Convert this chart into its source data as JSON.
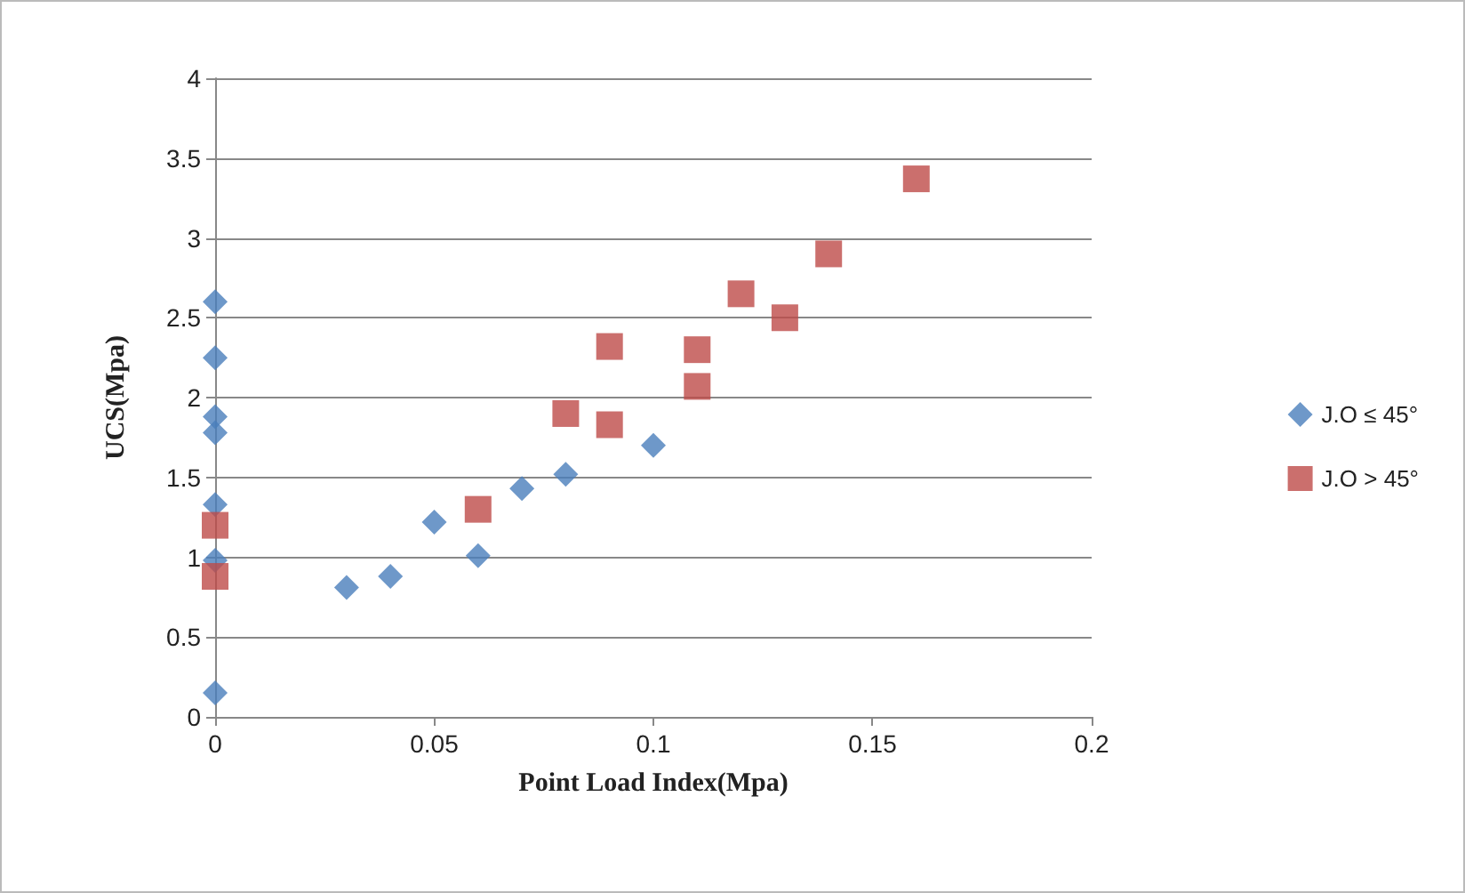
{
  "chart_data": {
    "type": "scatter",
    "xlabel": "Point Load Index(Mpa)",
    "ylabel": "UCS(Mpa)",
    "xlim": [
      0,
      0.2
    ],
    "xticks": [
      0,
      0.05,
      0.1,
      0.15,
      0.2
    ],
    "ylim": [
      0,
      4
    ],
    "yticks": [
      0,
      0.5,
      1,
      1.5,
      2,
      2.5,
      3,
      3.5,
      4
    ],
    "grid": "y",
    "legend": "right",
    "series": [
      {
        "name": "J.O ≤ 45°",
        "color": "#4a7ebb",
        "marker": "diamond",
        "x": [
          0,
          0,
          0,
          0,
          0,
          0,
          0,
          0.03,
          0.04,
          0.05,
          0.06,
          0.07,
          0.08,
          0.1
        ],
        "values": [
          2.6,
          2.25,
          1.88,
          1.78,
          1.33,
          0.98,
          0.15,
          0.81,
          0.88,
          1.22,
          1.01,
          1.43,
          1.52,
          1.7
        ]
      },
      {
        "name": "J.O > 45°",
        "color": "#be4b48",
        "marker": "square",
        "x": [
          0,
          0,
          0.06,
          0.08,
          0.09,
          0.09,
          0.11,
          0.11,
          0.12,
          0.13,
          0.14,
          0.16
        ],
        "values": [
          1.2,
          0.88,
          1.3,
          1.9,
          2.32,
          1.83,
          2.3,
          2.07,
          2.65,
          2.5,
          2.9,
          3.37
        ]
      }
    ]
  }
}
